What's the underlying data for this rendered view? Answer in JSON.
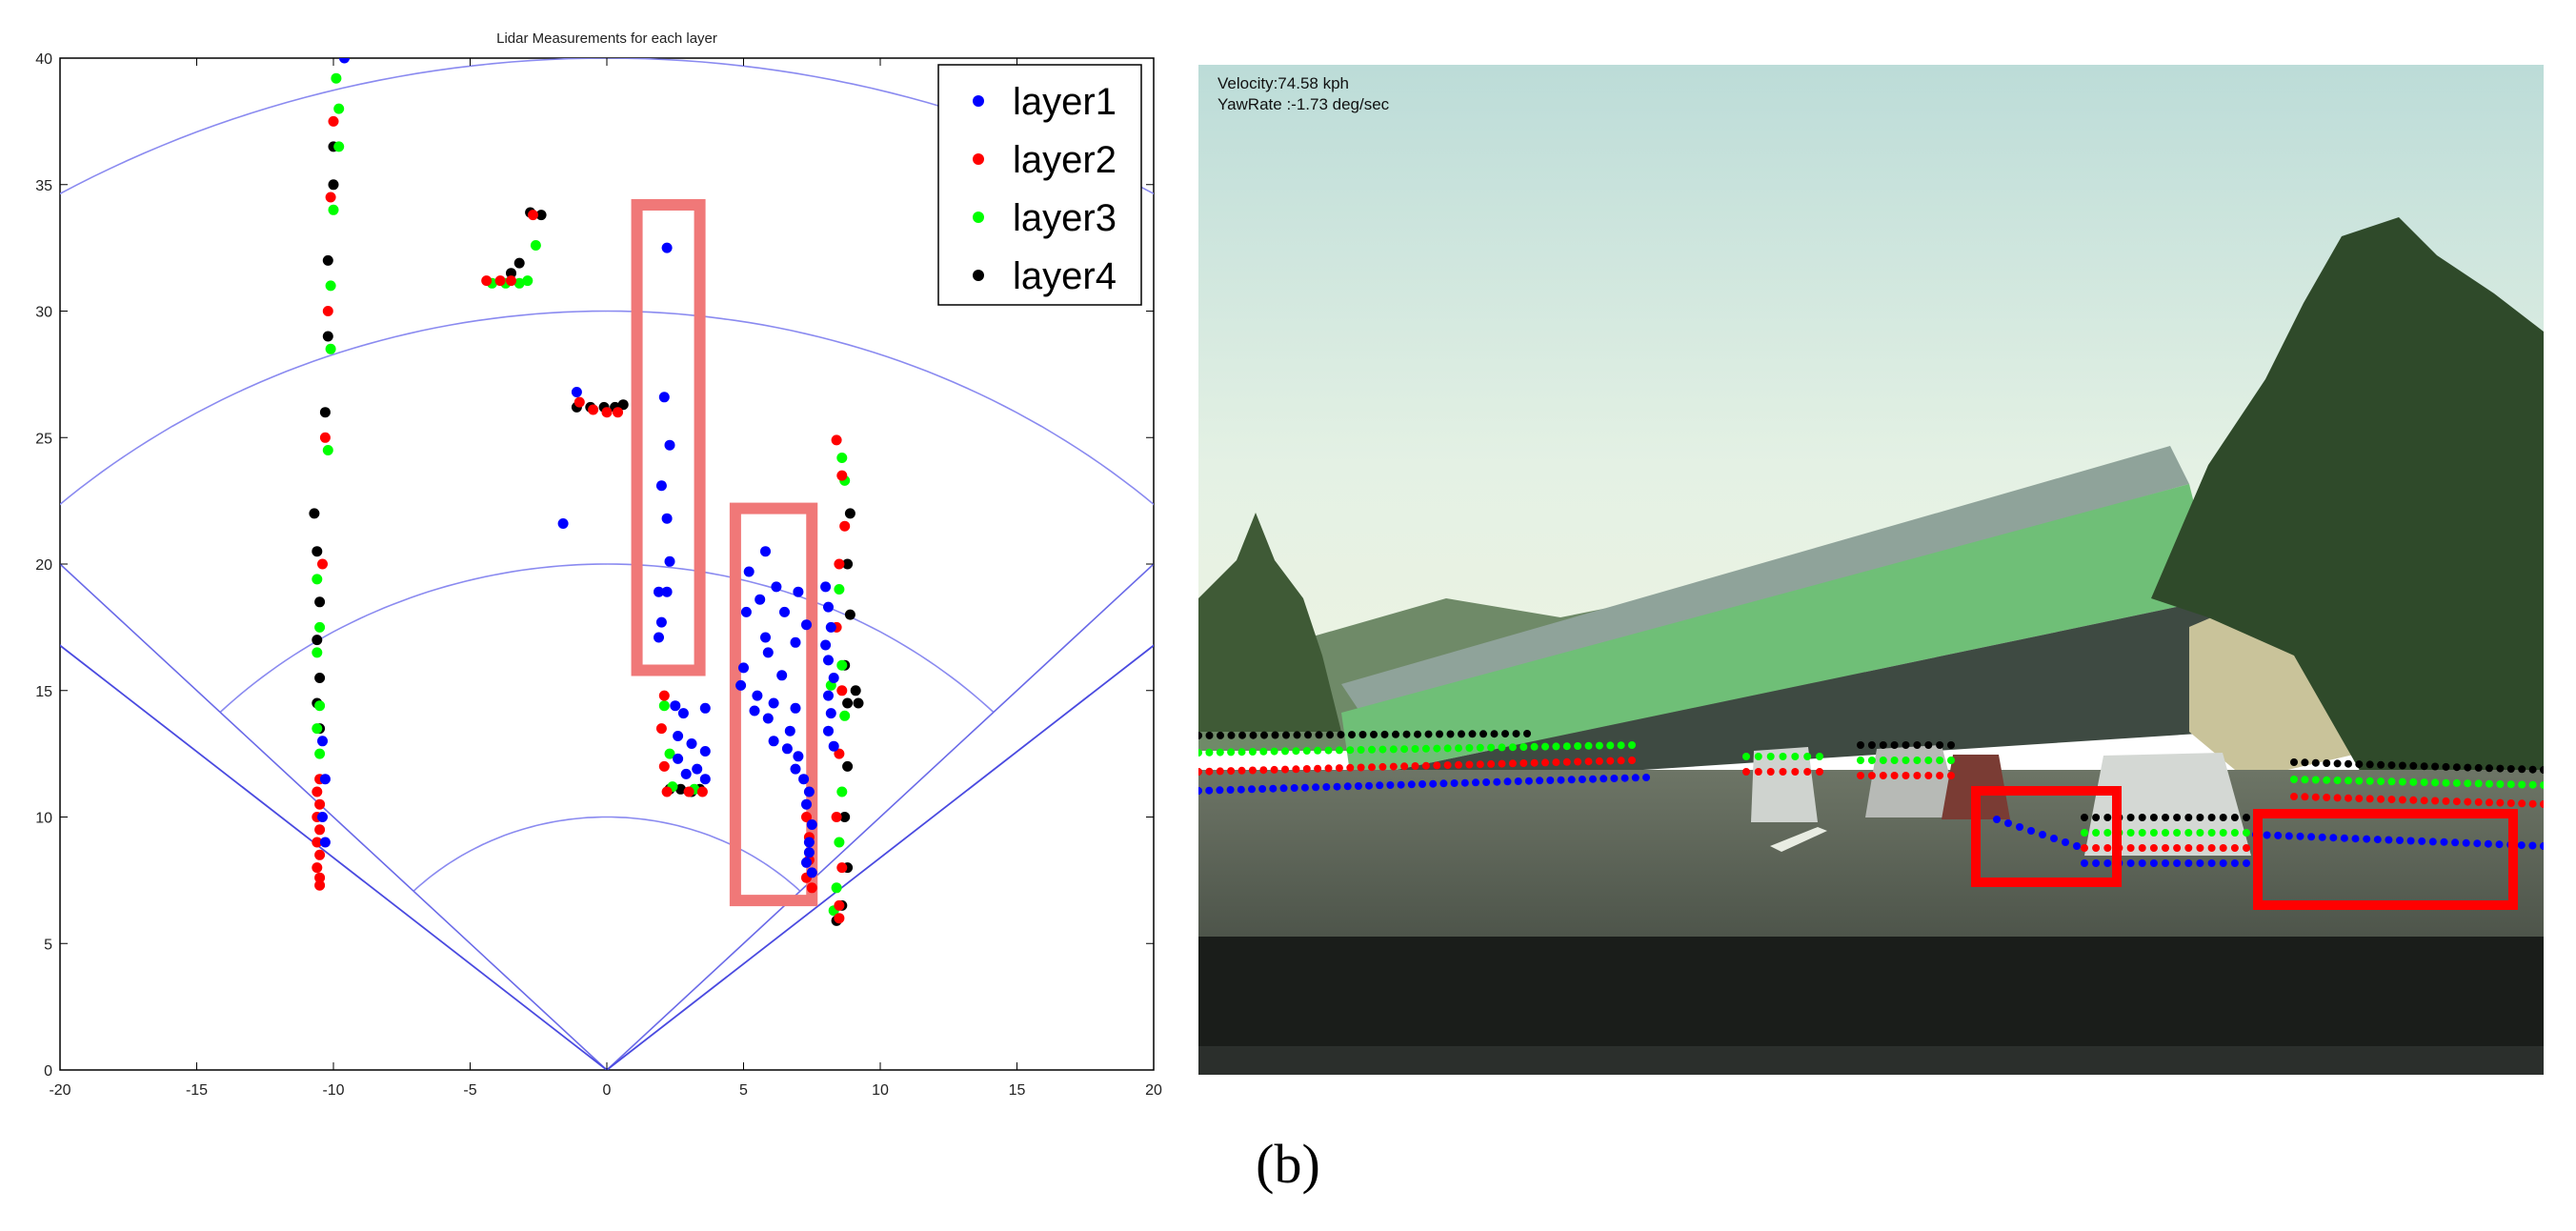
{
  "figure": {
    "caption": "(b)"
  },
  "chart_data": {
    "type": "scatter",
    "title": "Lidar Measurements for each layer",
    "xlabel": "",
    "ylabel": "",
    "xlim": [
      -20,
      20
    ],
    "ylim": [
      0,
      40
    ],
    "x_ticks": [
      -20,
      -15,
      -10,
      -5,
      0,
      5,
      10,
      15,
      20
    ],
    "y_ticks": [
      0,
      5,
      10,
      15,
      20,
      25,
      30,
      35,
      40
    ],
    "grid": "polar range rings at 10, 20, 30, 40 and field-of-view boundary lines",
    "polar_rings": [
      10,
      20,
      30,
      40
    ],
    "polar_ring_angle_deg": [
      -45,
      45
    ],
    "fov_angle_deg": [
      -50,
      50
    ],
    "legend": "top-right",
    "series": [
      {
        "name": "layer1",
        "color": "#0000ff",
        "points": [
          [
            2.2,
            32.5
          ],
          [
            2.1,
            26.6
          ],
          [
            2.3,
            24.7
          ],
          [
            2,
            23.1
          ],
          [
            2.2,
            21.8
          ],
          [
            2.3,
            20.1
          ],
          [
            1.9,
            18.9
          ],
          [
            2.2,
            18.9
          ],
          [
            2,
            17.7
          ],
          [
            1.9,
            17.1
          ],
          [
            -1.6,
            21.6
          ],
          [
            -1.1,
            26.8
          ],
          [
            5.8,
            20.5
          ],
          [
            5.2,
            19.7
          ],
          [
            6.2,
            19.1
          ],
          [
            5.6,
            18.6
          ],
          [
            7,
            18.9
          ],
          [
            6.5,
            18.1
          ],
          [
            5.1,
            18.1
          ],
          [
            7.3,
            17.6
          ],
          [
            5.8,
            17.1
          ],
          [
            6.9,
            16.9
          ],
          [
            5.9,
            16.5
          ],
          [
            5,
            15.9
          ],
          [
            6.4,
            15.6
          ],
          [
            4.9,
            15.2
          ],
          [
            5.5,
            14.8
          ],
          [
            6.1,
            14.5
          ],
          [
            5.4,
            14.2
          ],
          [
            6.9,
            14.3
          ],
          [
            5.9,
            13.9
          ],
          [
            6.7,
            13.4
          ],
          [
            6.1,
            13
          ],
          [
            6.6,
            12.7
          ],
          [
            7,
            12.4
          ],
          [
            6.9,
            11.9
          ],
          [
            7.2,
            11.5
          ],
          [
            7.4,
            11
          ],
          [
            7.3,
            10.5
          ],
          [
            7.5,
            9.7
          ],
          [
            7.4,
            9
          ],
          [
            7.4,
            8.6
          ],
          [
            7.3,
            8.2
          ],
          [
            7.5,
            7.8
          ],
          [
            8,
            19.1
          ],
          [
            8.1,
            18.3
          ],
          [
            8.2,
            17.5
          ],
          [
            8,
            16.8
          ],
          [
            8.1,
            16.2
          ],
          [
            8.3,
            15.5
          ],
          [
            8.1,
            14.8
          ],
          [
            8.2,
            14.1
          ],
          [
            8.1,
            13.4
          ],
          [
            8.3,
            12.8
          ],
          [
            2.5,
            14.4
          ],
          [
            2.8,
            14.1
          ],
          [
            3.6,
            14.3
          ],
          [
            2.6,
            13.2
          ],
          [
            3.1,
            12.9
          ],
          [
            3.6,
            12.6
          ],
          [
            2.6,
            12.3
          ],
          [
            3.3,
            11.9
          ],
          [
            2.9,
            11.7
          ],
          [
            3.6,
            11.5
          ],
          [
            -10.4,
            13
          ],
          [
            -10.3,
            11.5
          ],
          [
            -10.4,
            10
          ],
          [
            -10.3,
            9
          ],
          [
            -9.6,
            40
          ]
        ]
      },
      {
        "name": "layer2",
        "color": "#ff0000",
        "points": [
          [
            -10.5,
            11.5
          ],
          [
            -10.6,
            11
          ],
          [
            -10.5,
            10.5
          ],
          [
            -10.6,
            10
          ],
          [
            -10.5,
            9.5
          ],
          [
            -10.6,
            9
          ],
          [
            -10.5,
            8.5
          ],
          [
            -10.6,
            8
          ],
          [
            -10.5,
            7.6
          ],
          [
            -10.5,
            7.3
          ],
          [
            -10.4,
            20
          ],
          [
            -10.3,
            25
          ],
          [
            -10.2,
            30
          ],
          [
            -10.1,
            34.5
          ],
          [
            -10,
            37.5
          ],
          [
            -4.4,
            31.2
          ],
          [
            -3.9,
            31.2
          ],
          [
            -3.5,
            31.2
          ],
          [
            -2.7,
            33.8
          ],
          [
            -1,
            26.4
          ],
          [
            -0.5,
            26.1
          ],
          [
            0,
            26
          ],
          [
            0.4,
            26
          ],
          [
            2.1,
            14.8
          ],
          [
            2,
            13.5
          ],
          [
            2.1,
            12
          ],
          [
            2.2,
            11
          ],
          [
            3,
            11
          ],
          [
            3.5,
            11
          ],
          [
            7.3,
            10
          ],
          [
            7.4,
            9.2
          ],
          [
            7.4,
            8.3
          ],
          [
            7.3,
            7.6
          ],
          [
            7.5,
            7.2
          ],
          [
            8.4,
            24.9
          ],
          [
            8.6,
            23.5
          ],
          [
            8.7,
            21.5
          ],
          [
            8.5,
            20
          ],
          [
            8.4,
            17.5
          ],
          [
            8.6,
            15
          ],
          [
            8.5,
            12.5
          ],
          [
            8.4,
            10
          ],
          [
            8.6,
            8
          ],
          [
            8.5,
            6.5
          ],
          [
            8.5,
            6
          ]
        ]
      },
      {
        "name": "layer3",
        "color": "#00ff00",
        "points": [
          [
            -10.6,
            19.4
          ],
          [
            -10.5,
            17.5
          ],
          [
            -10.6,
            16.5
          ],
          [
            -10.5,
            14.4
          ],
          [
            -10.6,
            13.5
          ],
          [
            -10.5,
            12.5
          ],
          [
            -10.2,
            24.5
          ],
          [
            -10.1,
            28.5
          ],
          [
            -10.1,
            31
          ],
          [
            -10,
            34
          ],
          [
            -9.8,
            36.5
          ],
          [
            -9.8,
            38
          ],
          [
            -9.9,
            39.2
          ],
          [
            -4.2,
            31.1
          ],
          [
            -3.7,
            31.1
          ],
          [
            -3.2,
            31.1
          ],
          [
            -2.9,
            31.2
          ],
          [
            -2.6,
            32.6
          ],
          [
            2.1,
            14.4
          ],
          [
            2.3,
            12.5
          ],
          [
            2.4,
            11.2
          ],
          [
            3.2,
            11.1
          ],
          [
            8.6,
            24.2
          ],
          [
            8.7,
            23.3
          ],
          [
            8.5,
            19
          ],
          [
            8.6,
            16
          ],
          [
            8.7,
            14
          ],
          [
            8.6,
            11
          ],
          [
            8.5,
            9
          ],
          [
            8.4,
            7.2
          ],
          [
            8.3,
            6.3
          ],
          [
            8.2,
            15.2
          ]
        ]
      },
      {
        "name": "layer4",
        "color": "#000000",
        "points": [
          [
            -10.7,
            22
          ],
          [
            -10.6,
            20.5
          ],
          [
            -10.5,
            18.5
          ],
          [
            -10.6,
            17
          ],
          [
            -10.5,
            15.5
          ],
          [
            -10.6,
            14.5
          ],
          [
            -10.5,
            13.5
          ],
          [
            -10.3,
            26
          ],
          [
            -10.2,
            29
          ],
          [
            -10.2,
            32
          ],
          [
            -10,
            35
          ],
          [
            -10,
            36.5
          ],
          [
            -3.5,
            31.5
          ],
          [
            -3.2,
            31.9
          ],
          [
            -2.8,
            33.9
          ],
          [
            -2.4,
            33.8
          ],
          [
            -1.1,
            26.2
          ],
          [
            -0.6,
            26.2
          ],
          [
            -0.1,
            26.2
          ],
          [
            0.3,
            26.2
          ],
          [
            0.6,
            26.3
          ],
          [
            2.3,
            11.1
          ],
          [
            2.7,
            11.1
          ],
          [
            3.1,
            11
          ],
          [
            3.4,
            11.1
          ],
          [
            8.9,
            22
          ],
          [
            8.8,
            20
          ],
          [
            8.9,
            18
          ],
          [
            8.7,
            16
          ],
          [
            8.8,
            14.5
          ],
          [
            9.1,
            15
          ],
          [
            9.2,
            14.5
          ],
          [
            8.8,
            12
          ],
          [
            8.7,
            10
          ],
          [
            8.8,
            8
          ],
          [
            8.6,
            6.5
          ],
          [
            8.4,
            5.9
          ]
        ]
      }
    ],
    "annotations": [
      {
        "type": "highlight-rectangle",
        "color": "#f07878",
        "x_range": [
          1.1,
          3.4
        ],
        "y_range": [
          15.8,
          34.2
        ]
      },
      {
        "type": "highlight-rectangle",
        "color": "#f07878",
        "x_range": [
          4.7,
          7.5
        ],
        "y_range": [
          6.7,
          22.2
        ]
      }
    ]
  },
  "camera_view": {
    "velocity_text": "Velocity:74.58 kph",
    "yawrate_text": "YawRate :-1.73 deg/sec",
    "colors": {
      "sky_top": "#c5e1dc",
      "sky_bottom": "#e3f0e4",
      "bridge": "#6fbf77",
      "road": "#5a6358",
      "dashboard": "#1a1d1a",
      "highlight": "#ff0000"
    }
  }
}
